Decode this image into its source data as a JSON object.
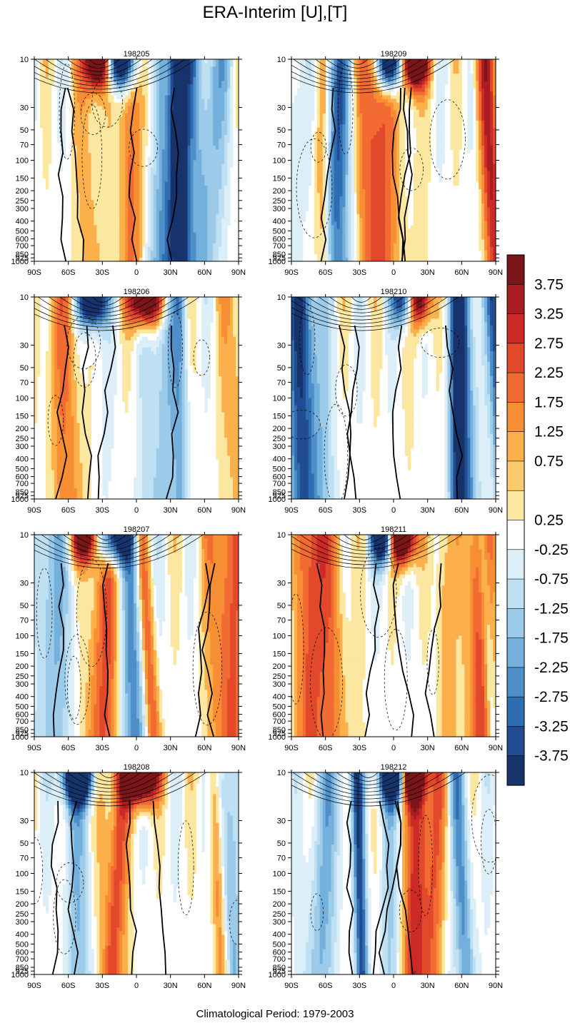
{
  "figure": {
    "title": "ERA-Interim [U],[T]",
    "footer": "Climatological Period: 1979-2003"
  },
  "chart_data": {
    "type": "heatmap",
    "title": "ERA-Interim [U],[T]",
    "subtitle": "Climatological Period: 1979-2003",
    "xlabel": "",
    "ylabel": "",
    "x_ticks": [
      "90S",
      "60S",
      "30S",
      "0",
      "30N",
      "60N",
      "90N"
    ],
    "x_values": [
      -90,
      -60,
      -30,
      0,
      30,
      60,
      90
    ],
    "y_ticks": [
      "10",
      "30",
      "50",
      "70",
      "100",
      "150",
      "200",
      "250",
      "300",
      "400",
      "500",
      "600",
      "700",
      "850",
      "925",
      "1000"
    ],
    "y_values": [
      10,
      30,
      50,
      70,
      100,
      150,
      200,
      250,
      300,
      400,
      500,
      600,
      700,
      850,
      925,
      1000
    ],
    "ylim": [
      1000,
      10
    ],
    "xlim": [
      -90,
      90
    ],
    "panels": [
      "198205",
      "198209",
      "198206",
      "198210",
      "198207",
      "198211",
      "198208",
      "198212"
    ],
    "colorbar": {
      "labels": [
        "3.75",
        "3.25",
        "2.75",
        "2.25",
        "1.75",
        "1.25",
        "0.75",
        "0.25",
        "-0.25",
        "-0.75",
        "-1.25",
        "-1.75",
        "-2.25",
        "-2.75",
        "-3.25",
        "-3.75"
      ],
      "colors": [
        "#7a1518",
        "#a81c22",
        "#cc2a27",
        "#e2492b",
        "#f26b32",
        "#f88e33",
        "#fbb04b",
        "#fccb6e",
        "#fbe7a0",
        "#ffffff",
        "#dceef8",
        "#bfe0f3",
        "#9ccbea",
        "#74b0dc",
        "#4e8fc9",
        "#2f6db2",
        "#214c92",
        "#17336b"
      ]
    },
    "colors": {
      "contour": "#000000"
    }
  }
}
